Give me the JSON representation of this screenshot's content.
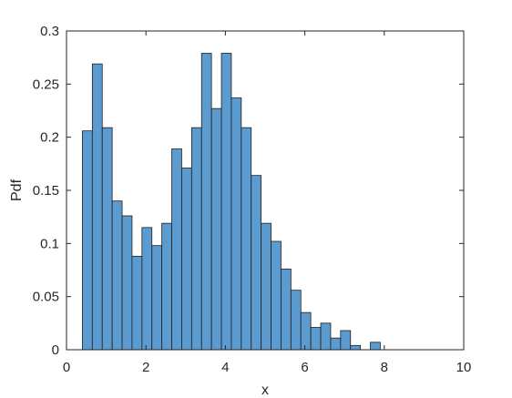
{
  "chart_data": {
    "type": "bar",
    "title": "",
    "xlabel": "x",
    "ylabel": "Pdf",
    "xlim": [
      0,
      10
    ],
    "ylim": [
      0,
      0.3
    ],
    "xticks": [
      0,
      2,
      4,
      6,
      8,
      10
    ],
    "xtick_labels": [
      "0",
      "2",
      "4",
      "6",
      "8",
      "10"
    ],
    "yticks": [
      0,
      0.05,
      0.1,
      0.15,
      0.2,
      0.25,
      0.3
    ],
    "ytick_labels": [
      "0",
      "0.05",
      "0.1",
      "0.15",
      "0.2",
      "0.25",
      "0.3"
    ],
    "bin_edges": [
      0.4,
      0.65,
      0.9,
      1.15,
      1.4,
      1.65,
      1.9,
      2.15,
      2.4,
      2.65,
      2.9,
      3.15,
      3.4,
      3.65,
      3.9,
      4.15,
      4.4,
      4.65,
      4.9,
      5.15,
      5.4,
      5.65,
      5.9,
      6.15,
      6.4,
      6.65,
      6.9,
      7.15,
      7.4,
      7.65,
      7.9,
      8.15,
      8.4
    ],
    "values": [
      0.206,
      0.269,
      0.209,
      0.14,
      0.126,
      0.088,
      0.115,
      0.098,
      0.119,
      0.189,
      0.171,
      0.209,
      0.279,
      0.227,
      0.279,
      0.237,
      0.209,
      0.164,
      0.119,
      0.102,
      0.076,
      0.056,
      0.035,
      0.021,
      0.025,
      0.011,
      0.018,
      0.004,
      0,
      0.007,
      0,
      0
    ],
    "grid": false,
    "box": true,
    "colors": {
      "bar_fill": "#5b9bd0",
      "bar_edge": "#1f1f1f",
      "axis": "#262626"
    }
  }
}
